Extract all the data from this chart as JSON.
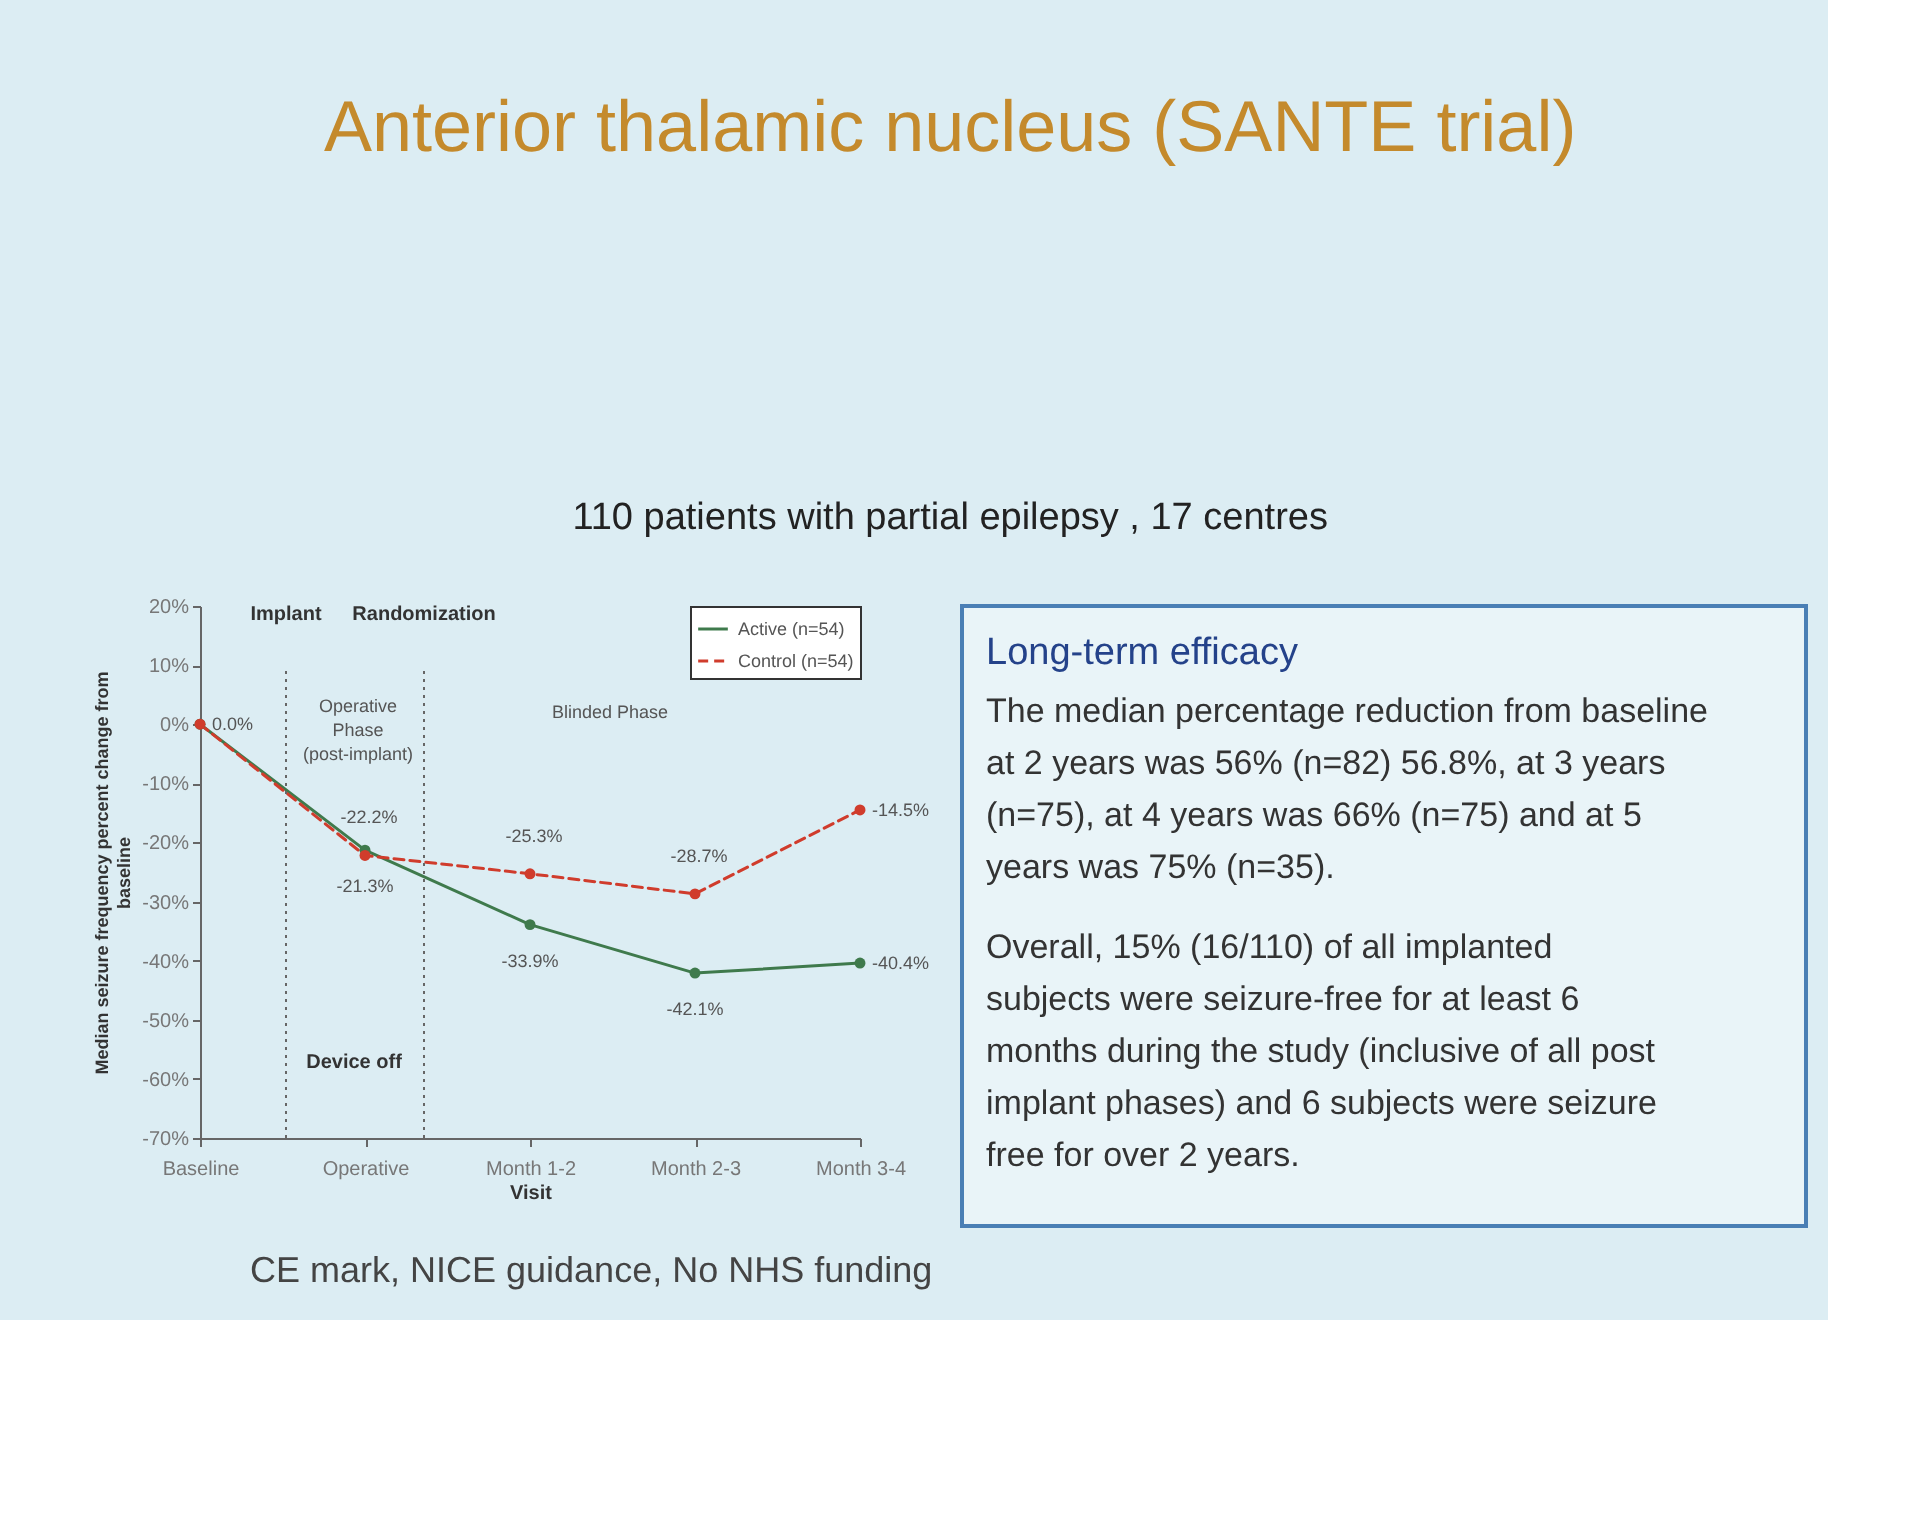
{
  "chart_data": [
    {
      "type": "line",
      "title": "Anterior thalamic nucleus (SANTE trial)",
      "subtitle": "110 patients with partial epilepsy , 17 centres",
      "xlabel": "Visit",
      "ylabel": "Median seizure frequency percent change from baseline",
      "categories": [
        "Baseline",
        "Operative",
        "Month 1-2",
        "Month 2-3",
        "Month 3-4"
      ],
      "ylim": [
        -70,
        20
      ],
      "yticks": [
        {
          "value": -70,
          "label": "-70%"
        },
        {
          "value": -60,
          "label": "-60%"
        },
        {
          "value": -50,
          "label": "-50%"
        },
        {
          "value": -40,
          "label": "-40%"
        },
        {
          "value": -30,
          "label": "-30%"
        },
        {
          "value": -20,
          "label": "-20%"
        },
        {
          "value": -10,
          "label": "-10%"
        },
        {
          "value": 0,
          "label": "0%"
        },
        {
          "value": 10,
          "label": "10%"
        },
        {
          "value": 20,
          "label": "20%"
        }
      ],
      "series": [
        {
          "name": "Active (n=54)",
          "color": "#3f7a4c",
          "line_style": "solid",
          "values": [
            0.0,
            -21.3,
            -33.9,
            -42.1,
            -40.4
          ],
          "value_labels": [
            "0.0%",
            "-21.3%",
            "-33.9%",
            "-42.1%",
            "-40.4%"
          ]
        },
        {
          "name": "Control (n=54)",
          "color": "#d03c2c",
          "line_style": "dashed",
          "values": [
            0.0,
            -22.2,
            -25.3,
            -28.7,
            -14.5
          ],
          "value_labels": [
            null,
            "-22.2%",
            "-25.3%",
            "-28.7%",
            "-14.5%"
          ]
        }
      ],
      "marker": "circle",
      "legend": "top right",
      "annotations": [
        "Implant",
        "Randomization",
        "Operative Phase (post-implant)",
        "Blinded Phase",
        "Device off",
        "CE mark, NICE guidance, No NHS funding"
      ]
    },
    {
      "type": "other",
      "title": "Long-term efficacy",
      "annotations": [
        "The median percentage reduction from baseline at 2 years was 56% (n=82) 56.8%, at 3 years (n=75), at 4 years was 66% (n=75) and at 5 years was 75% (n=35).",
        "Overall, 15% (16/110) of all implanted subjects were seizure-free for at least 6 months during the study (inclusive of all post implant phases) and 6 subjects were seizure free for over 2 years."
      ]
    }
  ]
}
